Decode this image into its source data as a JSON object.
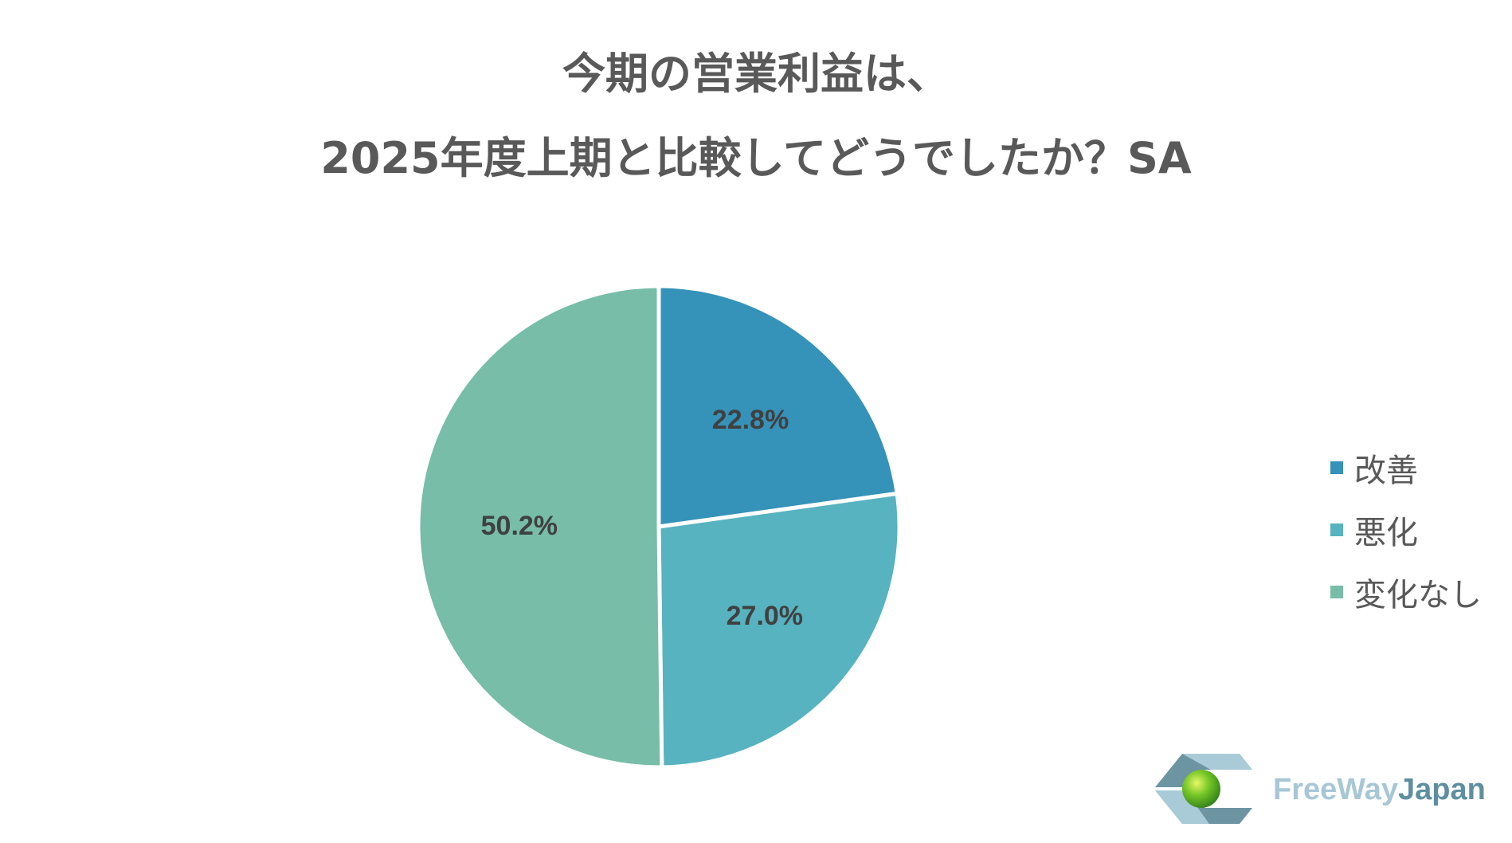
{
  "title": {
    "line1": "今期の営業利益は、",
    "line2": "2025年度上期と比較してどうでしたか？SA"
  },
  "chart_data": {
    "type": "pie",
    "categories": [
      "改善",
      "悪化",
      "変化なし"
    ],
    "values": [
      22.8,
      27.0,
      50.2
    ],
    "labels": [
      "22.8%",
      "27.0%",
      "50.2%"
    ],
    "colors": [
      "#3592b9",
      "#57b3bf",
      "#77bda7"
    ],
    "legend": "right",
    "start_angle": "12 o'clock, clockwise"
  },
  "legend": {
    "items": [
      {
        "label": "改善",
        "color": "#3592b9"
      },
      {
        "label": "悪化",
        "color": "#57b3bf"
      },
      {
        "label": "変化なし",
        "color": "#77bda7"
      }
    ]
  },
  "logo": {
    "text_part1": "FreeWay",
    "text_part2": "Japan"
  }
}
